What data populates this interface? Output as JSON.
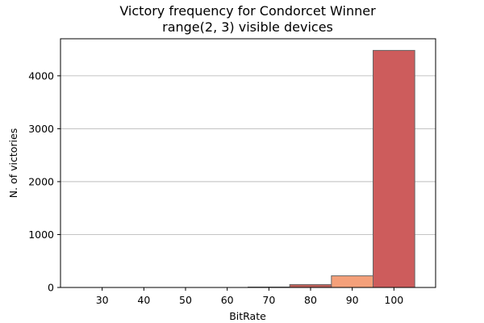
{
  "chart_data": {
    "type": "bar",
    "title_lines": [
      "Victory frequency for Condorcet Winner",
      "range(2, 3) visible devices"
    ],
    "xlabel": "BitRate",
    "ylabel": "N. of victories",
    "xlim": [
      20,
      110
    ],
    "ylim": [
      0,
      4700
    ],
    "x_ticks": [
      30,
      40,
      50,
      60,
      70,
      80,
      90,
      100
    ],
    "y_ticks": [
      0,
      1000,
      2000,
      3000,
      4000
    ],
    "grid": "y",
    "bin_width": 10,
    "bins": [
      {
        "center": 70,
        "value": 8,
        "color": "#8b1a1a"
      },
      {
        "center": 80,
        "value": 55,
        "color": "#c0605a"
      },
      {
        "center": 90,
        "value": 220,
        "color": "#f4a07a"
      },
      {
        "center": 100,
        "value": 4480,
        "color": "#cd5c5c"
      }
    ]
  }
}
